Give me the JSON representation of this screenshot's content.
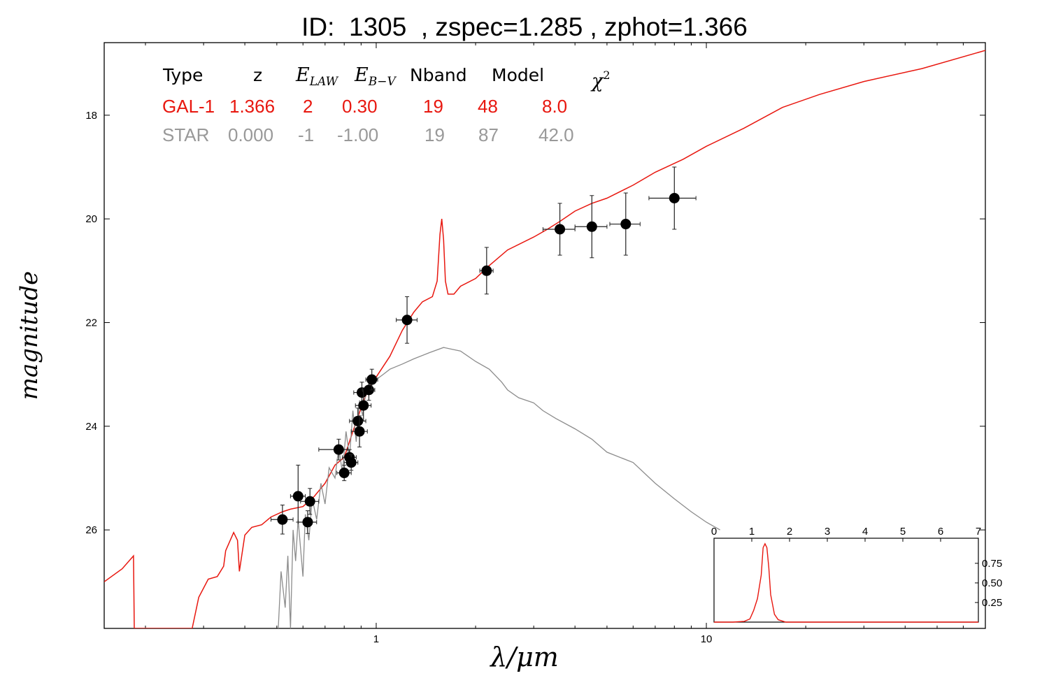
{
  "chart_data": [
    {
      "type": "scatter",
      "title": "ID:  1305  , zspec=1.285 , zphot=1.366",
      "xlabel": "λ/μm",
      "ylabel": "magnitude",
      "xscale": "log",
      "xlim": [
        0.15,
        70
      ],
      "ylim": [
        27.9,
        16.6
      ],
      "y_inverted": true,
      "x_tick_labels": [
        "1",
        "10"
      ],
      "y_ticks": [
        18,
        20,
        22,
        24,
        26
      ],
      "y_tick_labels": [
        "18",
        "20",
        "22",
        "24",
        "26"
      ],
      "table": {
        "headers": {
          "type": "Type",
          "z": "z",
          "elaw": {
            "base": "E",
            "sub": "LAW"
          },
          "ebv": {
            "base": "E",
            "sub": "B−V"
          },
          "nband": "Nband",
          "model": "Model",
          "chi2": {
            "base": "χ",
            "sup": "2"
          }
        },
        "rows": [
          {
            "type": "GAL-1",
            "z": "1.366",
            "elaw": "2",
            "ebv": "0.30",
            "nband": "19",
            "model": "48",
            "chi2": "8.0",
            "color": "#e8170f"
          },
          {
            "type": "STAR",
            "z": "0.000",
            "elaw": "-1",
            "ebv": "-1.00",
            "nband": "19",
            "model": "87",
            "chi2": "42.0",
            "color": "#999999"
          }
        ]
      },
      "series": [
        {
          "name": "GAL-1",
          "kind": "line",
          "color": "#e8170f",
          "points": [
            [
              0.15,
              27.0
            ],
            [
              0.17,
              26.75
            ],
            [
              0.184,
              26.5
            ],
            [
              0.185,
              27.9
            ],
            [
              0.277,
              27.9
            ],
            [
              0.29,
              27.3
            ],
            [
              0.31,
              26.95
            ],
            [
              0.33,
              26.9
            ],
            [
              0.345,
              26.7
            ],
            [
              0.35,
              26.4
            ],
            [
              0.37,
              26.05
            ],
            [
              0.38,
              26.2
            ],
            [
              0.385,
              26.8
            ],
            [
              0.4,
              26.1
            ],
            [
              0.42,
              25.95
            ],
            [
              0.45,
              25.9
            ],
            [
              0.48,
              25.75
            ],
            [
              0.52,
              25.65
            ],
            [
              0.55,
              25.6
            ],
            [
              0.6,
              25.55
            ],
            [
              0.65,
              25.35
            ],
            [
              0.7,
              25.1
            ],
            [
              0.75,
              24.75
            ],
            [
              0.8,
              24.6
            ],
            [
              0.85,
              24.1
            ],
            [
              0.9,
              23.65
            ],
            [
              0.95,
              23.25
            ],
            [
              1.0,
              23.05
            ],
            [
              1.1,
              22.65
            ],
            [
              1.2,
              22.15
            ],
            [
              1.3,
              21.8
            ],
            [
              1.38,
              21.6
            ],
            [
              1.48,
              21.5
            ],
            [
              1.53,
              21.2
            ],
            [
              1.56,
              20.3
            ],
            [
              1.58,
              20.0
            ],
            [
              1.6,
              20.4
            ],
            [
              1.62,
              21.2
            ],
            [
              1.65,
              21.45
            ],
            [
              1.72,
              21.45
            ],
            [
              1.8,
              21.3
            ],
            [
              2.0,
              21.15
            ],
            [
              2.2,
              20.9
            ],
            [
              2.5,
              20.6
            ],
            [
              3.0,
              20.35
            ],
            [
              3.3,
              20.2
            ],
            [
              3.6,
              20.05
            ],
            [
              4.0,
              19.85
            ],
            [
              4.5,
              19.7
            ],
            [
              5.0,
              19.6
            ],
            [
              6.0,
              19.35
            ],
            [
              7.0,
              19.1
            ],
            [
              8.5,
              18.85
            ],
            [
              10.0,
              18.6
            ],
            [
              13.0,
              18.25
            ],
            [
              17.0,
              17.85
            ],
            [
              22.0,
              17.6
            ],
            [
              30.0,
              17.35
            ],
            [
              45.0,
              17.1
            ],
            [
              70.0,
              16.75
            ]
          ]
        },
        {
          "name": "STAR",
          "kind": "line",
          "color": "#8c8c8c",
          "points": [
            [
              0.505,
              27.9
            ],
            [
              0.515,
              26.8
            ],
            [
              0.53,
              27.5
            ],
            [
              0.54,
              26.5
            ],
            [
              0.55,
              27.9
            ],
            [
              0.56,
              26.0
            ],
            [
              0.57,
              26.6
            ],
            [
              0.58,
              25.8
            ],
            [
              0.6,
              26.9
            ],
            [
              0.61,
              25.7
            ],
            [
              0.625,
              26.2
            ],
            [
              0.64,
              25.4
            ],
            [
              0.66,
              25.8
            ],
            [
              0.68,
              25.1
            ],
            [
              0.7,
              25.5
            ],
            [
              0.72,
              24.8
            ],
            [
              0.75,
              25.0
            ],
            [
              0.77,
              24.4
            ],
            [
              0.79,
              24.9
            ],
            [
              0.81,
              24.1
            ],
            [
              0.83,
              24.6
            ],
            [
              0.85,
              23.7
            ],
            [
              0.87,
              24.3
            ],
            [
              0.89,
              23.5
            ],
            [
              0.91,
              23.8
            ],
            [
              0.93,
              23.35
            ],
            [
              0.96,
              23.2
            ],
            [
              1.0,
              23.1
            ],
            [
              1.05,
              23.0
            ],
            [
              1.1,
              22.9
            ],
            [
              1.2,
              22.8
            ],
            [
              1.3,
              22.7
            ],
            [
              1.45,
              22.58
            ],
            [
              1.6,
              22.48
            ],
            [
              1.8,
              22.55
            ],
            [
              2.0,
              22.75
            ],
            [
              2.2,
              22.9
            ],
            [
              2.4,
              23.15
            ],
            [
              2.5,
              23.3
            ],
            [
              2.7,
              23.45
            ],
            [
              3.0,
              23.55
            ],
            [
              3.2,
              23.7
            ],
            [
              3.5,
              23.85
            ],
            [
              4.0,
              24.05
            ],
            [
              4.5,
              24.25
            ],
            [
              5.0,
              24.5
            ],
            [
              6.0,
              24.7
            ],
            [
              7.0,
              25.1
            ],
            [
              8.0,
              25.4
            ],
            [
              9.0,
              25.65
            ],
            [
              10.0,
              25.85
            ],
            [
              11.0,
              26.0
            ]
          ]
        }
      ],
      "points": [
        {
          "x": 0.52,
          "y": 25.8,
          "xerr": [
            0.04,
            0.04
          ],
          "yerr": [
            0.28,
            0.28
          ]
        },
        {
          "x": 0.58,
          "y": 25.35,
          "xerr": [
            0.03,
            0.03
          ],
          "yerr": [
            0.6,
            0.5
          ]
        },
        {
          "x": 0.62,
          "y": 25.85,
          "xerr": [
            0.04,
            0.04
          ],
          "yerr": [
            0.22,
            0.22
          ]
        },
        {
          "x": 0.63,
          "y": 25.45,
          "xerr": [
            0.04,
            0.04
          ],
          "yerr": [
            0.25,
            0.25
          ]
        },
        {
          "x": 0.77,
          "y": 24.45,
          "xerr": [
            0.1,
            0.05
          ],
          "yerr": [
            0.2,
            0.2
          ]
        },
        {
          "x": 0.8,
          "y": 24.9,
          "xerr": [
            0.04,
            0.04
          ],
          "yerr": [
            0.15,
            0.15
          ]
        },
        {
          "x": 0.83,
          "y": 24.6,
          "xerr": [
            0.04,
            0.04
          ],
          "yerr": [
            0.15,
            0.15
          ]
        },
        {
          "x": 0.84,
          "y": 24.7,
          "xerr": [
            0.04,
            0.04
          ],
          "yerr": [
            0.15,
            0.15
          ]
        },
        {
          "x": 0.88,
          "y": 23.9,
          "xerr": [
            0.05,
            0.05
          ],
          "yerr": [
            0.25,
            0.25
          ]
        },
        {
          "x": 0.89,
          "y": 24.1,
          "xerr": [
            0.05,
            0.05
          ],
          "yerr": [
            0.3,
            0.3
          ]
        },
        {
          "x": 0.905,
          "y": 23.35,
          "xerr": [
            0.05,
            0.05
          ],
          "yerr": [
            0.2,
            0.2
          ]
        },
        {
          "x": 0.915,
          "y": 23.6,
          "xerr": [
            0.05,
            0.05
          ],
          "yerr": [
            0.3,
            0.3
          ]
        },
        {
          "x": 0.95,
          "y": 23.3,
          "xerr": [
            0.04,
            0.04
          ],
          "yerr": [
            0.2,
            0.2
          ]
        },
        {
          "x": 0.97,
          "y": 23.1,
          "xerr": [
            0.04,
            0.04
          ],
          "yerr": [
            0.2,
            0.2
          ]
        },
        {
          "x": 1.24,
          "y": 21.95,
          "xerr": [
            0.09,
            0.09
          ],
          "yerr": [
            0.45,
            0.45
          ]
        },
        {
          "x": 2.16,
          "y": 21.0,
          "xerr": [
            0.1,
            0.1
          ],
          "yerr": [
            0.45,
            0.45
          ]
        },
        {
          "x": 3.6,
          "y": 20.2,
          "xerr": [
            0.4,
            0.4
          ],
          "yerr": [
            0.5,
            0.5
          ]
        },
        {
          "x": 4.5,
          "y": 20.15,
          "xerr": [
            0.5,
            0.5
          ],
          "yerr": [
            0.6,
            0.6
          ]
        },
        {
          "x": 5.7,
          "y": 20.1,
          "xerr": [
            0.6,
            0.6
          ],
          "yerr": [
            0.6,
            0.6
          ]
        },
        {
          "x": 8.0,
          "y": 19.6,
          "xerr": [
            1.3,
            1.3
          ],
          "yerr": [
            0.6,
            0.6
          ]
        }
      ]
    },
    {
      "type": "line",
      "xlim": [
        0,
        7
      ],
      "ylim": [
        0,
        1.07
      ],
      "x_ticks": [
        0,
        1,
        2,
        3,
        4,
        5,
        6,
        7
      ],
      "x_tick_labels": [
        "0",
        "1",
        "2",
        "3",
        "4",
        "5",
        "6",
        "7"
      ],
      "y_ticks": [
        0.25,
        0.5,
        0.75
      ],
      "y_tick_labels": [
        "0.25",
        "0.50",
        "0.75"
      ],
      "series": [
        {
          "name": "",
          "color": "#e8170f",
          "points": [
            [
              0,
              0
            ],
            [
              0.5,
              0
            ],
            [
              0.8,
              0.01
            ],
            [
              0.95,
              0.04
            ],
            [
              1.05,
              0.15
            ],
            [
              1.15,
              0.3
            ],
            [
              1.25,
              0.6
            ],
            [
              1.3,
              0.95
            ],
            [
              1.35,
              1.0
            ],
            [
              1.4,
              0.95
            ],
            [
              1.45,
              0.7
            ],
            [
              1.5,
              0.35
            ],
            [
              1.6,
              0.1
            ],
            [
              1.7,
              0.03
            ],
            [
              1.9,
              0
            ],
            [
              7,
              0
            ]
          ]
        }
      ]
    }
  ]
}
